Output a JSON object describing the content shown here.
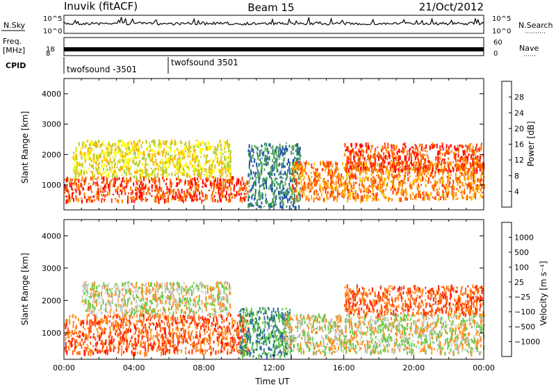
{
  "header": {
    "station": "Inuvik (fitACF)",
    "beam": "Beam 15",
    "date": "21/Oct/2012"
  },
  "top_panels": {
    "noise": {
      "left_label": "N.Sky",
      "right_label": "N.Search",
      "left_ticks": [
        "10^5",
        "10^0"
      ],
      "right_ticks": [
        "10^5",
        "10^0"
      ]
    },
    "freq": {
      "left_label_1": "Freq.",
      "left_label_2": "[MHz]",
      "right_label": "Nave",
      "left_ticks": [
        "18",
        "8"
      ],
      "right_ticks": [
        "60",
        "0"
      ]
    },
    "cpid": {
      "label": "CPID",
      "entries": [
        {
          "name": "twofsound -3501",
          "start_hour": 0
        },
        {
          "name": "twofsound 3501",
          "start_hour": 6
        }
      ]
    }
  },
  "chart_data": [
    {
      "type": "heatmap",
      "title": "",
      "ylabel": "Slant Range [km]",
      "xlabel": "",
      "x_range_hours": [
        0,
        24
      ],
      "ylim": [
        180,
        4500
      ],
      "y_ticks": [
        1000,
        2000,
        3000,
        4000
      ],
      "colorbar": {
        "label": "Power [dB]",
        "ticks": [
          "4",
          "8",
          "12",
          "16",
          "20",
          "24",
          "28"
        ],
        "colors": [
          "#0000ff",
          "#2255aa",
          "#2e8b57",
          "#5fb05f",
          "#a8d030",
          "#ffff00",
          "#ffb400",
          "#ff8000",
          "#ff4000",
          "#ff0000"
        ]
      },
      "echo_regions": [
        {
          "hours": [
            0,
            10.5
          ],
          "range_km": [
            500,
            1300
          ],
          "level": 28
        },
        {
          "hours": [
            0.5,
            9.5
          ],
          "range_km": [
            1300,
            2500
          ],
          "level": 16
        },
        {
          "hours": [
            10.5,
            13.5
          ],
          "range_km": [
            300,
            2400
          ],
          "level": 8
        },
        {
          "hours": [
            13,
            24
          ],
          "range_km": [
            550,
            1800
          ],
          "level": 24
        },
        {
          "hours": [
            16,
            24
          ],
          "range_km": [
            1500,
            2400
          ],
          "level": 26
        }
      ]
    },
    {
      "type": "heatmap",
      "title": "",
      "ylabel": "Slant Range [km]",
      "xlabel": "Time UT",
      "x_range_hours": [
        0,
        24
      ],
      "x_ticks": [
        "00:00",
        "04:00",
        "08:00",
        "12:00",
        "16:00",
        "20:00",
        "00:00"
      ],
      "ylim": [
        180,
        4500
      ],
      "y_ticks": [
        1000,
        2000,
        3000,
        4000
      ],
      "colorbar": {
        "label": "Velocity [m s⁻¹]",
        "ticks": [
          "1000",
          "500",
          "100",
          "25",
          "−25",
          "−100",
          "−500",
          "−1000"
        ],
        "colors": [
          "#2233bb",
          "#3366aa",
          "#2e8b57",
          "#66cc44",
          "#c8c8c8",
          "#ff9020",
          "#ff6010",
          "#ff2000",
          "#ff0000"
        ]
      },
      "echo_regions": [
        {
          "hours": [
            0,
            10.5
          ],
          "range_km": [
            400,
            1600
          ],
          "velocity": -200
        },
        {
          "hours": [
            1,
            9.5
          ],
          "range_km": [
            1600,
            2600
          ],
          "velocity": 0
        },
        {
          "hours": [
            10,
            13
          ],
          "range_km": [
            300,
            1800
          ],
          "velocity": 100
        },
        {
          "hours": [
            12.5,
            24
          ],
          "range_km": [
            400,
            1600
          ],
          "velocity": 0
        },
        {
          "hours": [
            16,
            24
          ],
          "range_km": [
            1600,
            2500
          ],
          "velocity": -200
        }
      ]
    }
  ]
}
